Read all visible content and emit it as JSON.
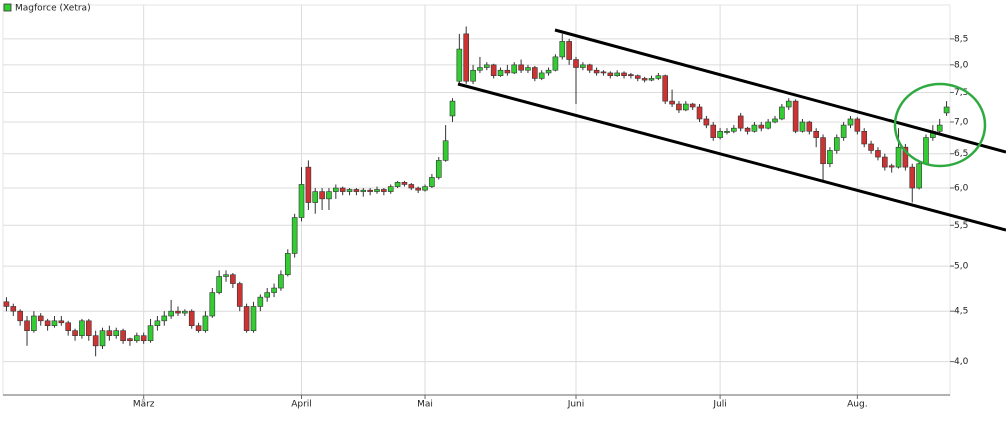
{
  "chart_data": {
    "type": "candlestick",
    "name": "Magforce (Xetra)",
    "legend": "top-left",
    "grid": true,
    "log_scale": true,
    "up_color": "#33cc33",
    "down_color": "#cc3333",
    "xlim": [
      -0.5,
      137.5
    ],
    "xticks": [
      {
        "value": 20,
        "label": "März"
      },
      {
        "value": 43,
        "label": "April"
      },
      {
        "value": 61,
        "label": "Mai"
      },
      {
        "value": 83,
        "label": "Juni"
      },
      {
        "value": 104,
        "label": "Juli"
      },
      {
        "value": 124,
        "label": "Aug."
      }
    ],
    "ylim": [
      3.7,
      9.2
    ],
    "yticks": [
      {
        "value": 4,
        "label": "4,0"
      },
      {
        "value": 4.5,
        "label": "4,5"
      },
      {
        "value": 5,
        "label": "5,0"
      },
      {
        "value": 5.5,
        "label": "5,5"
      },
      {
        "value": 6,
        "label": "6,0"
      },
      {
        "value": 6.5,
        "label": "6,5"
      },
      {
        "value": 7,
        "label": "7,0"
      },
      {
        "value": 7.5,
        "label": "7,5"
      },
      {
        "value": 8,
        "label": "8,0"
      },
      {
        "value": 8.5,
        "label": "8,5"
      }
    ],
    "open": [
      4.6,
      4.55,
      4.5,
      4.4,
      4.3,
      4.45,
      4.4,
      4.35,
      4.4,
      4.38,
      4.3,
      4.25,
      4.4,
      4.25,
      4.15,
      4.3,
      4.25,
      4.3,
      4.22,
      4.2,
      4.25,
      4.2,
      4.35,
      4.4,
      4.45,
      4.5,
      4.48,
      4.5,
      4.35,
      4.3,
      4.45,
      4.7,
      4.88,
      4.9,
      4.8,
      4.55,
      4.3,
      4.55,
      4.65,
      4.7,
      4.75,
      4.9,
      5.15,
      5.6,
      6.3,
      5.8,
      5.95,
      5.85,
      5.95,
      6.0,
      5.95,
      5.98,
      5.95,
      5.97,
      5.95,
      5.98,
      5.95,
      6.02,
      6.08,
      6.05,
      6.0,
      5.97,
      6.02,
      6.15,
      6.4,
      7.1,
      7.7,
      8.6,
      7.7,
      7.9,
      7.95,
      8.0,
      7.8,
      7.9,
      7.85,
      8.0,
      7.9,
      7.95,
      7.75,
      7.85,
      7.9,
      8.15,
      8.45,
      8.1,
      7.95,
      8.0,
      7.9,
      7.87,
      7.85,
      7.8,
      7.85,
      7.82,
      7.8,
      7.75,
      7.72,
      7.75,
      7.8,
      7.35,
      7.3,
      7.2,
      7.3,
      7.25,
      7.05,
      6.95,
      6.75,
      6.83,
      6.85,
      7.1,
      6.9,
      6.85,
      6.95,
      6.9,
      7.0,
      7.05,
      7.25,
      7.35,
      6.85,
      7.0,
      6.85,
      6.75,
      6.35,
      6.55,
      6.75,
      6.95,
      7.05,
      6.85,
      6.65,
      6.55,
      6.45,
      6.32,
      6.3,
      6.6,
      6.3,
      6.0,
      6.35,
      6.75,
      6.85,
      7.15
    ],
    "high": [
      4.65,
      4.58,
      4.52,
      4.45,
      4.5,
      4.48,
      4.42,
      4.45,
      4.45,
      4.4,
      4.32,
      4.42,
      4.42,
      4.3,
      4.33,
      4.35,
      4.33,
      4.32,
      4.23,
      4.28,
      4.28,
      4.42,
      4.45,
      4.5,
      4.62,
      4.55,
      4.52,
      4.52,
      4.38,
      4.5,
      4.75,
      4.95,
      4.95,
      4.92,
      4.82,
      4.58,
      4.6,
      4.68,
      4.75,
      4.8,
      4.95,
      5.2,
      5.65,
      6.3,
      6.4,
      6.0,
      6.0,
      6.0,
      6.05,
      6.02,
      6.0,
      6.0,
      6.0,
      6.0,
      6.02,
      6.0,
      6.05,
      6.1,
      6.1,
      6.07,
      6.02,
      6.05,
      6.2,
      6.45,
      6.95,
      7.4,
      8.6,
      8.75,
      8.0,
      8.15,
      8.05,
      8.02,
      7.95,
      8.0,
      8.05,
      8.1,
      8.0,
      7.98,
      7.9,
      7.95,
      8.2,
      8.6,
      8.5,
      8.15,
      8.05,
      8.02,
      7.95,
      7.9,
      7.88,
      7.9,
      7.88,
      7.85,
      7.82,
      7.78,
      7.8,
      7.85,
      7.82,
      7.55,
      7.35,
      7.35,
      7.32,
      7.3,
      7.1,
      7.0,
      6.9,
      6.9,
      6.95,
      7.15,
      6.92,
      7.0,
      7.0,
      7.05,
      7.1,
      7.3,
      7.4,
      7.38,
      7.05,
      7.02,
      6.9,
      6.8,
      6.6,
      6.8,
      7.0,
      7.1,
      7.08,
      6.9,
      6.7,
      6.6,
      6.5,
      6.35,
      6.9,
      6.65,
      6.35,
      6.4,
      6.8,
      6.95,
      7.05,
      7.35
    ],
    "low": [
      4.5,
      4.45,
      4.35,
      4.15,
      4.28,
      4.35,
      4.3,
      4.33,
      4.35,
      4.25,
      4.2,
      4.22,
      4.2,
      4.05,
      4.12,
      4.2,
      4.22,
      4.17,
      4.15,
      4.18,
      4.17,
      4.18,
      4.3,
      4.35,
      4.42,
      4.45,
      4.45,
      4.32,
      4.28,
      4.28,
      4.43,
      4.68,
      4.82,
      4.75,
      4.5,
      4.28,
      4.28,
      4.5,
      4.6,
      4.65,
      4.72,
      4.88,
      5.1,
      5.55,
      5.7,
      5.65,
      5.7,
      5.7,
      5.85,
      5.9,
      5.9,
      5.9,
      5.88,
      5.9,
      5.92,
      5.9,
      5.92,
      6.0,
      6.02,
      5.97,
      5.93,
      5.95,
      6.0,
      6.12,
      6.38,
      7.0,
      7.65,
      7.65,
      7.65,
      7.85,
      7.9,
      7.75,
      7.78,
      7.8,
      7.83,
      7.85,
      7.85,
      7.7,
      7.72,
      7.8,
      7.88,
      8.1,
      8.0,
      7.3,
      7.9,
      7.85,
      7.8,
      7.8,
      7.75,
      7.78,
      7.75,
      7.75,
      7.7,
      7.68,
      7.7,
      7.72,
      7.3,
      7.25,
      7.15,
      7.18,
      7.2,
      7.0,
      6.9,
      6.7,
      6.72,
      6.8,
      6.82,
      6.85,
      6.8,
      6.83,
      6.85,
      6.88,
      6.98,
      7.03,
      7.2,
      6.82,
      6.83,
      6.8,
      6.6,
      6.1,
      6.3,
      6.5,
      6.7,
      6.9,
      6.8,
      6.6,
      6.5,
      6.4,
      6.25,
      6.22,
      6.28,
      6.25,
      5.8,
      5.98,
      6.33,
      6.7,
      6.8,
      7.1
    ],
    "close": [
      4.55,
      4.5,
      4.4,
      4.3,
      4.45,
      4.4,
      4.35,
      4.4,
      4.38,
      4.3,
      4.25,
      4.4,
      4.25,
      4.15,
      4.3,
      4.25,
      4.3,
      4.2,
      4.2,
      4.25,
      4.2,
      4.35,
      4.4,
      4.45,
      4.5,
      4.48,
      4.5,
      4.35,
      4.3,
      4.45,
      4.7,
      4.88,
      4.9,
      4.8,
      4.55,
      4.3,
      4.55,
      4.65,
      4.7,
      4.75,
      4.9,
      5.15,
      5.6,
      6.05,
      5.8,
      5.95,
      5.85,
      5.95,
      6.0,
      5.95,
      5.98,
      5.95,
      5.97,
      5.95,
      5.98,
      5.95,
      6.02,
      6.08,
      6.05,
      6.0,
      5.97,
      6.02,
      6.15,
      6.4,
      6.7,
      7.35,
      8.3,
      7.7,
      7.9,
      7.95,
      8.0,
      7.8,
      7.9,
      7.85,
      8.0,
      7.9,
      7.95,
      7.75,
      7.85,
      7.9,
      8.15,
      8.45,
      8.1,
      7.95,
      8.0,
      7.9,
      7.85,
      7.85,
      7.8,
      7.85,
      7.8,
      7.8,
      7.75,
      7.72,
      7.75,
      7.8,
      7.35,
      7.3,
      7.2,
      7.3,
      7.25,
      7.05,
      6.95,
      6.75,
      6.85,
      6.85,
      6.9,
      6.9,
      6.85,
      6.95,
      6.9,
      7.0,
      7.05,
      7.25,
      7.35,
      6.85,
      7.0,
      6.85,
      6.75,
      6.35,
      6.55,
      6.75,
      6.95,
      7.05,
      6.85,
      6.65,
      6.55,
      6.45,
      6.3,
      6.3,
      6.6,
      6.3,
      6.0,
      6.35,
      6.75,
      6.85,
      6.95,
      7.25
    ]
  }
}
